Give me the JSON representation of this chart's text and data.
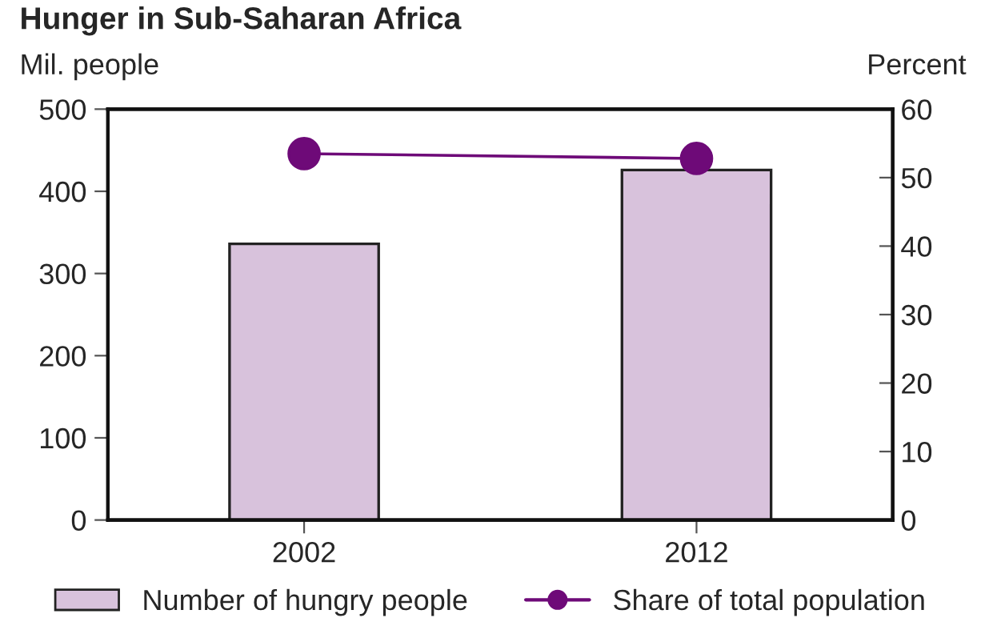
{
  "chart_data": {
    "type": "bar",
    "title": "Hunger in Sub-Saharan Africa",
    "ylabel": "Mil. people",
    "y2label": "Percent",
    "categories": [
      "2002",
      "2012"
    ],
    "series": [
      {
        "name": "Number of hungry people",
        "color": "#d8c2dc",
        "values": [
          336,
          426
        ]
      },
      {
        "name": "Share of total population",
        "type": "line",
        "axis": "y2",
        "color": "#6e0a78",
        "marker": "circle",
        "values": [
          53.5,
          52.8
        ]
      }
    ],
    "ylim": [
      0,
      500
    ],
    "yticks": [
      0,
      100,
      200,
      300,
      400,
      500
    ],
    "y2lim": [
      0,
      60
    ],
    "y2ticks": [
      0,
      10,
      20,
      30,
      40,
      50,
      60
    ],
    "grid": false,
    "legend": "bottom"
  }
}
